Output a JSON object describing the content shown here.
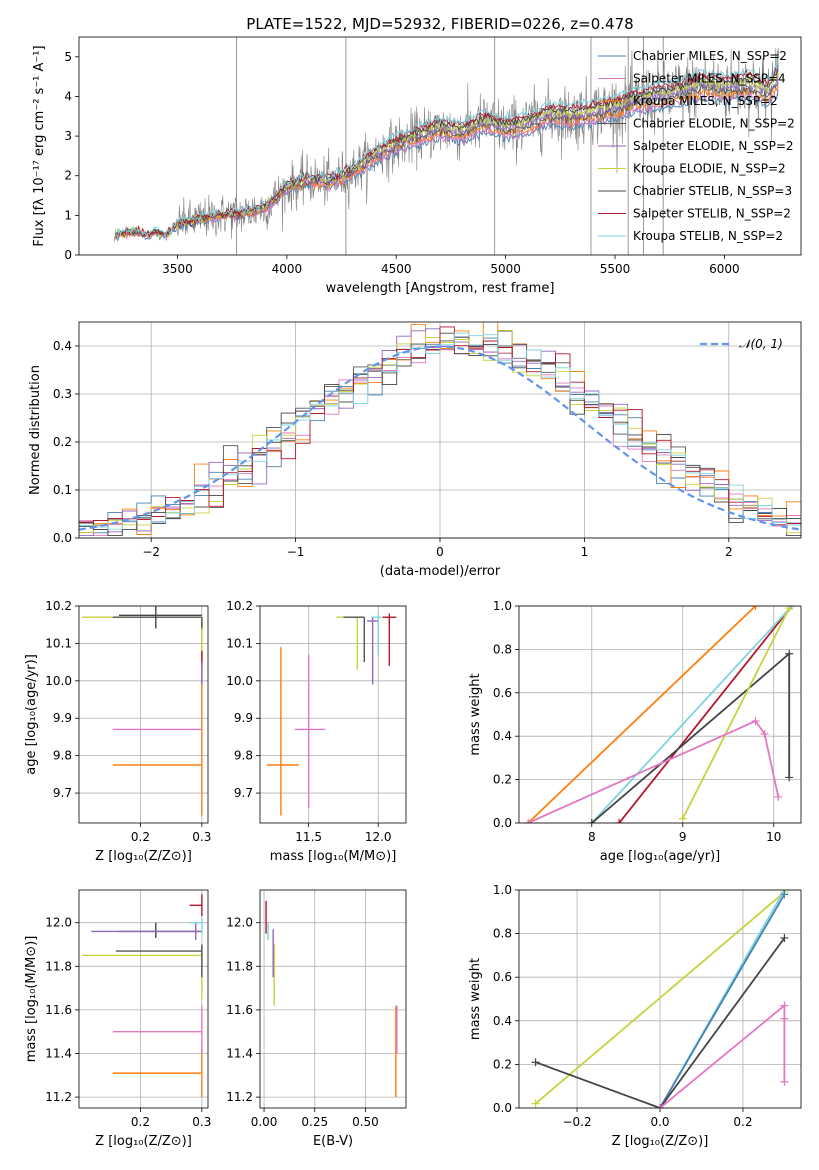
{
  "title": "PLATE=1522, MJD=52932, FIBERID=0226, z=0.478",
  "colors": {
    "chabrier_miles": "#4682b4",
    "salpeter_miles": "#e377c2",
    "kroupa_miles": "#ff7f0e",
    "chabrier_elodie": "#555555",
    "salpeter_elodie": "#9467bd",
    "kroupa_elodie": "#c8d23c",
    "chabrier_stelib": "#444444",
    "salpeter_stelib": "#b2182b",
    "kroupa_stelib": "#7fd3e0",
    "data": "#808080",
    "normal": "#6495ed"
  },
  "chart_data": [
    {
      "id": "spectrum",
      "type": "line",
      "xlabel": "wavelength [Angstrom, rest frame]",
      "ylabel": "Flux [fλ 10⁻¹⁷ erg cm⁻² s⁻¹ A⁻¹]",
      "xlim": [
        3050,
        6350
      ],
      "ylim": [
        0,
        5.5
      ],
      "xticks": [
        "3500",
        "4000",
        "4500",
        "5000",
        "5500",
        "6000"
      ],
      "yticks": [
        "0",
        "1",
        "2",
        "3",
        "4",
        "5"
      ],
      "legend": [
        {
          "label": "Chabrier MILES, N_SSP=2",
          "color_key": "chabrier_miles"
        },
        {
          "label": "Salpeter MILES, N_SSP=4",
          "color_key": "salpeter_miles"
        },
        {
          "label": "Kroupa MILES, N_SSP=2",
          "color_key": "kroupa_miles"
        },
        {
          "label": "Chabrier ELODIE, N_SSP=2",
          "color_key": "chabrier_elodie"
        },
        {
          "label": "Salpeter ELODIE, N_SSP=2",
          "color_key": "salpeter_elodie"
        },
        {
          "label": "Kroupa ELODIE, N_SSP=2",
          "color_key": "kroupa_elodie"
        },
        {
          "label": "Chabrier STELIB, N_SSP=3",
          "color_key": "chabrier_stelib"
        },
        {
          "label": "Salpeter STELIB, N_SSP=2",
          "color_key": "salpeter_stelib"
        },
        {
          "label": "Kroupa STELIB, N_SSP=2",
          "color_key": "kroupa_stelib"
        }
      ],
      "model_curve": [
        [
          3200,
          0
        ],
        [
          3215,
          0.5
        ],
        [
          3300,
          0.6
        ],
        [
          3360,
          0.5
        ],
        [
          3400,
          0.6
        ],
        [
          3450,
          0.5
        ],
        [
          3500,
          0.8
        ],
        [
          3600,
          0.9
        ],
        [
          3700,
          1.0
        ],
        [
          3800,
          1.05
        ],
        [
          3900,
          1.2
        ],
        [
          4000,
          1.7
        ],
        [
          4100,
          1.9
        ],
        [
          4200,
          1.85
        ],
        [
          4300,
          2.1
        ],
        [
          4400,
          2.5
        ],
        [
          4500,
          2.8
        ],
        [
          4600,
          3.0
        ],
        [
          4700,
          3.2
        ],
        [
          4800,
          3.1
        ],
        [
          4900,
          3.35
        ],
        [
          5000,
          3.2
        ],
        [
          5100,
          3.3
        ],
        [
          5200,
          3.55
        ],
        [
          5300,
          3.5
        ],
        [
          5400,
          3.6
        ],
        [
          5500,
          3.7
        ],
        [
          5600,
          3.9
        ],
        [
          5700,
          4.0
        ],
        [
          5800,
          4.1
        ],
        [
          5900,
          4.3
        ],
        [
          6000,
          4.2
        ],
        [
          6100,
          4.3
        ],
        [
          6200,
          4.1
        ],
        [
          6250,
          4.5
        ]
      ],
      "data_noise_start": 3500,
      "spikes": [
        3770,
        4270,
        4950,
        5390,
        5560,
        5630,
        5720
      ]
    },
    {
      "id": "residuals",
      "type": "line",
      "xlabel": "(data-model)/error",
      "ylabel": "Normed distribution",
      "xlim": [
        -2.5,
        2.5
      ],
      "ylim": [
        0,
        0.45
      ],
      "xticks": [
        "−2",
        "−1",
        "0",
        "1",
        "2"
      ],
      "yticks": [
        "0.0",
        "0.1",
        "0.2",
        "0.3",
        "0.4"
      ],
      "legend": [
        {
          "label": "𝒩(0, 1)",
          "color_key": "normal"
        }
      ],
      "normal_mean": 0,
      "normal_sigma": 1
    },
    {
      "id": "age-vs-metallicity",
      "type": "scatter",
      "xlabel": "Z [log₁₀(Z/Z⊙)]",
      "ylabel": "age  [log₁₀(age/yr)]",
      "xlim": [
        0.1,
        0.31
      ],
      "ylim": [
        9.62,
        10.2
      ],
      "xticks": [
        "0.2",
        "0.3"
      ],
      "yticks": [
        "9.7",
        "9.8",
        "9.9",
        "10.0",
        "10.1",
        "10.2"
      ],
      "points": [
        {
          "x": 0.3,
          "y": 9.775,
          "xerr": [
            0.155,
            0.3
          ],
          "yerr": [
            9.64,
            10.17
          ],
          "color_key": "kroupa_miles"
        },
        {
          "x": 0.3,
          "y": 9.87,
          "xerr": [
            0.155,
            0.3
          ],
          "yerr": [
            9.87,
            9.87
          ],
          "color_key": "salpeter_miles"
        },
        {
          "x": 0.3,
          "y": 10.17,
          "xerr": [
            0.105,
            0.3
          ],
          "yerr": [
            10.0,
            10.17
          ],
          "color_key": "kroupa_elodie"
        },
        {
          "x": 0.3,
          "y": 10.17,
          "xerr": [
            0.155,
            0.3
          ],
          "yerr": [
            10.14,
            10.17
          ],
          "color_key": "chabrier_elodie"
        },
        {
          "x": 0.225,
          "y": 10.175,
          "xerr": [
            0.165,
            0.3
          ],
          "yerr": [
            10.14,
            10.2
          ],
          "color_key": "chabrier_stelib"
        },
        {
          "x": 0.3,
          "y": 10.06,
          "xerr": [
            0.3,
            0.3
          ],
          "yerr": [
            10.04,
            10.08
          ],
          "color_key": "salpeter_stelib"
        },
        {
          "x": 0.3,
          "y": 10.02,
          "xerr": [
            0.3,
            0.3
          ],
          "yerr": [
            9.99,
            10.05
          ],
          "color_key": "salpeter_elodie"
        }
      ]
    },
    {
      "id": "age-vs-mass",
      "type": "scatter",
      "xlabel": "mass [log₁₀(M/M⊙)]",
      "ylabel": "",
      "xlim": [
        11.15,
        12.2
      ],
      "ylim": [
        9.62,
        10.2
      ],
      "xticks": [
        "11.5",
        "12.0"
      ],
      "yticks": [
        "9.7",
        "9.8",
        "9.9",
        "10.0",
        "10.1",
        "10.2"
      ],
      "points": [
        {
          "x": 11.3,
          "y": 9.775,
          "xerr": [
            11.2,
            11.43
          ],
          "yerr": [
            9.64,
            10.09
          ],
          "color_key": "kroupa_miles"
        },
        {
          "x": 11.5,
          "y": 9.87,
          "xerr": [
            11.4,
            11.62
          ],
          "yerr": [
            9.66,
            10.07
          ],
          "color_key": "salpeter_miles"
        },
        {
          "x": 11.85,
          "y": 10.17,
          "xerr": [
            11.7,
            11.9
          ],
          "yerr": [
            10.03,
            10.17
          ],
          "color_key": "kroupa_elodie"
        },
        {
          "x": 11.9,
          "y": 10.17,
          "xerr": [
            11.75,
            11.9
          ],
          "yerr": [
            10.05,
            10.17
          ],
          "color_key": "chabrier_elodie"
        },
        {
          "x": 11.96,
          "y": 10.16,
          "xerr": [
            11.92,
            12.0
          ],
          "yerr": [
            9.99,
            10.17
          ],
          "color_key": "salpeter_elodie"
        },
        {
          "x": 12.0,
          "y": 10.17,
          "xerr": [
            11.95,
            12.02
          ],
          "yerr": [
            10.07,
            10.18
          ],
          "color_key": "kroupa_stelib"
        },
        {
          "x": 12.08,
          "y": 10.17,
          "xerr": [
            12.03,
            12.13
          ],
          "yerr": [
            10.04,
            10.18
          ],
          "color_key": "salpeter_stelib"
        }
      ]
    },
    {
      "id": "mass-weight-vs-age",
      "type": "line",
      "xlabel": "age  [log₁₀(age/yr)]",
      "ylabel": "mass weight",
      "xlim": [
        7.2,
        10.3
      ],
      "ylim": [
        0,
        1
      ],
      "xticks": [
        "8",
        "9",
        "10"
      ],
      "yticks": [
        "0.0",
        "0.2",
        "0.4",
        "0.6",
        "0.8",
        "1.0"
      ],
      "series": [
        {
          "color_key": "kroupa_miles",
          "x": [
            7.3,
            9.8
          ],
          "y": [
            0.0,
            1.0
          ]
        },
        {
          "color_key": "salpeter_stelib",
          "x": [
            8.3,
            10.2
          ],
          "y": [
            0.0,
            1.0
          ]
        },
        {
          "color_key": "kroupa_stelib",
          "x": [
            8.0,
            10.2
          ],
          "y": [
            0.0,
            1.0
          ]
        },
        {
          "color_key": "chabrier_stelib",
          "x": [
            8.0,
            10.17,
            10.17
          ],
          "y": [
            0.0,
            0.78,
            0.21
          ]
        },
        {
          "color_key": "kroupa_elodie",
          "x": [
            9.0,
            10.17
          ],
          "y": [
            0.02,
            0.99
          ]
        },
        {
          "color_key": "salpeter_miles",
          "x": [
            7.3,
            9.8,
            9.9,
            10.05
          ],
          "y": [
            0.0,
            0.47,
            0.41,
            0.12
          ]
        }
      ]
    },
    {
      "id": "mass-vs-metallicity",
      "type": "scatter",
      "xlabel": "Z [log₁₀(Z/Z⊙)]",
      "ylabel": "mass [log₁₀(M/M⊙)]",
      "xlim": [
        0.1,
        0.31
      ],
      "ylim": [
        11.15,
        12.15
      ],
      "xticks": [
        "0.2",
        "0.3"
      ],
      "yticks": [
        "11.2",
        "11.4",
        "11.6",
        "11.8",
        "12.0"
      ],
      "points": [
        {
          "x": 0.3,
          "y": 11.31,
          "xerr": [
            0.155,
            0.3
          ],
          "yerr": [
            11.2,
            11.43
          ],
          "color_key": "kroupa_miles"
        },
        {
          "x": 0.3,
          "y": 11.5,
          "xerr": [
            0.155,
            0.3
          ],
          "yerr": [
            11.4,
            11.62
          ],
          "color_key": "salpeter_miles"
        },
        {
          "x": 0.3,
          "y": 11.85,
          "xerr": [
            0.105,
            0.3
          ],
          "yerr": [
            11.65,
            11.9
          ],
          "color_key": "kroupa_elodie"
        },
        {
          "x": 0.3,
          "y": 11.87,
          "xerr": [
            0.16,
            0.3
          ],
          "yerr": [
            11.75,
            11.9
          ],
          "color_key": "chabrier_elodie"
        },
        {
          "x": 0.225,
          "y": 11.96,
          "xerr": [
            0.165,
            0.3
          ],
          "yerr": [
            11.93,
            12.0
          ],
          "color_key": "chabrier_stelib"
        },
        {
          "x": 0.29,
          "y": 11.96,
          "xerr": [
            0.12,
            0.3
          ],
          "yerr": [
            11.92,
            12.0
          ],
          "color_key": "salpeter_elodie"
        },
        {
          "x": 0.3,
          "y": 12.08,
          "xerr": [
            0.28,
            0.3
          ],
          "yerr": [
            12.03,
            12.13
          ],
          "color_key": "salpeter_stelib"
        },
        {
          "x": 0.3,
          "y": 12.0,
          "xerr": [
            0.28,
            0.3
          ],
          "yerr": [
            11.95,
            12.02
          ],
          "color_key": "kroupa_stelib"
        }
      ]
    },
    {
      "id": "mass-vs-ebv",
      "type": "scatter",
      "xlabel": "E(B-V)",
      "ylabel": "",
      "xlim": [
        -0.02,
        0.7
      ],
      "ylim": [
        11.15,
        12.15
      ],
      "xticks": [
        "0.00",
        "0.25",
        "0.50"
      ],
      "yticks": [
        "11.2",
        "11.4",
        "11.6",
        "11.8",
        "12.0"
      ],
      "points": [
        {
          "x": 0.65,
          "y": 11.35,
          "xerr": [
            0.65,
            0.65
          ],
          "yerr": [
            11.2,
            11.62
          ],
          "color_key": "kroupa_miles"
        },
        {
          "x": 0.655,
          "y": 11.5,
          "xerr": [
            0.655,
            0.655
          ],
          "yerr": [
            11.4,
            11.62
          ],
          "color_key": "salpeter_miles"
        },
        {
          "x": 0.05,
          "y": 11.85,
          "xerr": [
            0.05,
            0.05
          ],
          "yerr": [
            11.62,
            11.9
          ],
          "color_key": "kroupa_elodie"
        },
        {
          "x": 0.045,
          "y": 11.9,
          "xerr": [
            0.045,
            0.045
          ],
          "yerr": [
            11.75,
            11.97
          ],
          "color_key": "salpeter_elodie"
        },
        {
          "x": 0.01,
          "y": 12.0,
          "xerr": [
            0.01,
            0.01
          ],
          "yerr": [
            11.95,
            12.1
          ],
          "color_key": "salpeter_stelib"
        },
        {
          "x": 0.02,
          "y": 11.96,
          "xerr": [
            0.02,
            0.02
          ],
          "yerr": [
            11.92,
            12.0
          ],
          "color_key": "kroupa_stelib"
        }
      ]
    },
    {
      "id": "mass-weight-vs-metallicity",
      "type": "line",
      "xlabel": "Z [log₁₀(Z/Z⊙)]",
      "ylabel": "mass weight",
      "xlim": [
        -0.34,
        0.34
      ],
      "ylim": [
        0,
        1
      ],
      "xticks": [
        "−0.2",
        "0.0",
        "0.2"
      ],
      "yticks": [
        "0.0",
        "0.2",
        "0.4",
        "0.6",
        "0.8",
        "1.0"
      ],
      "series": [
        {
          "color_key": "kroupa_elodie",
          "x": [
            -0.3,
            0.3
          ],
          "y": [
            0.02,
            0.99
          ]
        },
        {
          "color_key": "kroupa_stelib",
          "x": [
            0.0,
            0.3
          ],
          "y": [
            0.0,
            1.0
          ]
        },
        {
          "color_key": "chabrier_miles",
          "x": [
            0.0,
            0.3
          ],
          "y": [
            0.0,
            0.98
          ]
        },
        {
          "color_key": "chabrier_stelib",
          "x": [
            -0.3,
            0.0,
            0.3
          ],
          "y": [
            0.21,
            0.0,
            0.78
          ]
        },
        {
          "color_key": "salpeter_miles",
          "x": [
            0.0,
            0.3,
            0.3,
            0.3
          ],
          "y": [
            0.0,
            0.47,
            0.41,
            0.12
          ]
        }
      ]
    }
  ]
}
